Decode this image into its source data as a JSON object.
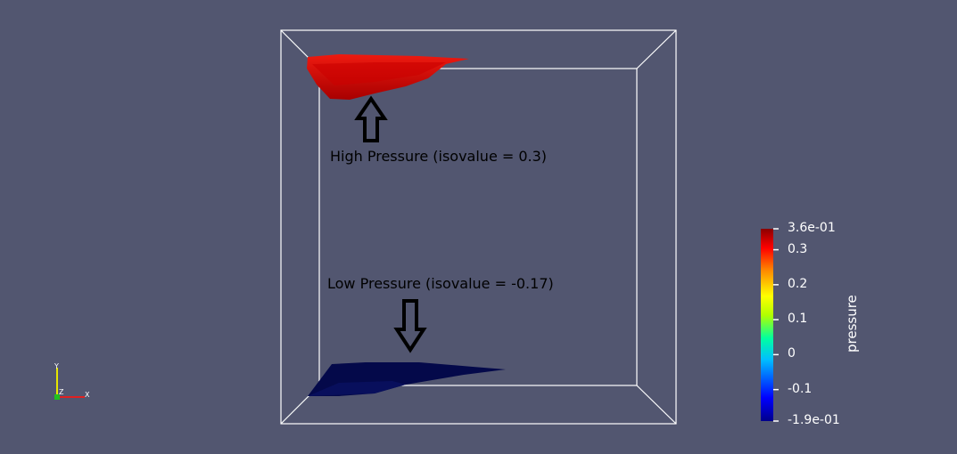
{
  "annotations": {
    "high": "High Pressure (isovalue = 0.3)",
    "low": "Low Pressure (isovalue = -0.17)"
  },
  "colorbar": {
    "title": "pressure",
    "range": [
      -0.19,
      0.36
    ],
    "labels": [
      {
        "text": "3.6e-01",
        "value": 0.36
      },
      {
        "text": "0.3",
        "value": 0.3
      },
      {
        "text": "0.2",
        "value": 0.2
      },
      {
        "text": "0.1",
        "value": 0.1
      },
      {
        "text": "0",
        "value": 0.0
      },
      {
        "text": "-0.1",
        "value": -0.1
      },
      {
        "text": "-1.9e-01",
        "value": -0.19
      }
    ]
  },
  "axes": {
    "x": "X",
    "y": "Y",
    "z": "Z"
  },
  "colors": {
    "background": "#525670",
    "high_surface": "#dd0000",
    "low_surface": "#04094a",
    "outline": "#ffffff",
    "axis_x": "#e02020",
    "axis_y": "#e6e600",
    "axis_z": "#20c020"
  }
}
